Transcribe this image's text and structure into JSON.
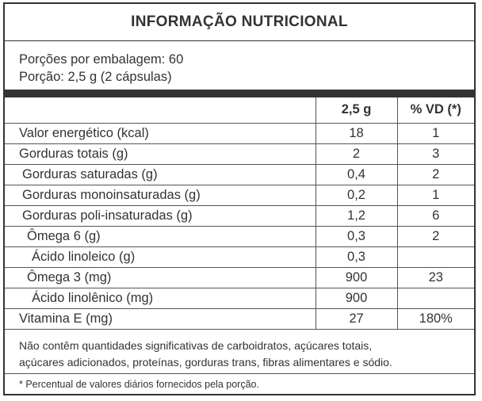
{
  "title": "INFORMAÇÃO NUTRICIONAL",
  "portions": {
    "per_package": "Porções por embalagem: 60",
    "serving": "Porção: 2,5 g (2 cápsulas)"
  },
  "table": {
    "headers": [
      "",
      "2,5 g",
      "% VD (*)"
    ],
    "rows": [
      {
        "name": "Valor energético (kcal)",
        "qty": "18",
        "vd": "1",
        "indent": 0
      },
      {
        "name": "Gorduras totais (g)",
        "qty": "2",
        "vd": "3",
        "indent": 0
      },
      {
        "name": "Gorduras saturadas (g)",
        "qty": "0,4",
        "vd": "2",
        "indent": 1
      },
      {
        "name": "Gorduras monoinsaturadas (g)",
        "qty": "0,2",
        "vd": "1",
        "indent": 1
      },
      {
        "name": "Gorduras poli-insaturadas (g)",
        "qty": "1,2",
        "vd": "6",
        "indent": 1
      },
      {
        "name": "Ômega 6 (g)",
        "qty": "0,3",
        "vd": "2",
        "indent": 2
      },
      {
        "name": "Ácido linoleico (g)",
        "qty": "0,3",
        "vd": "",
        "indent": 3
      },
      {
        "name": "Ômega 3 (mg)",
        "qty": "900",
        "vd": "23",
        "indent": 2
      },
      {
        "name": "Ácido linolênico (mg)",
        "qty": "900",
        "vd": "",
        "indent": 3
      },
      {
        "name": "Vitamina E (mg)",
        "qty": "27",
        "vd": "180%",
        "indent": 0
      }
    ]
  },
  "note": {
    "line1": "Não contêm quantidades significativas de carboidratos, açúcares totais,",
    "line2": "açúcares adicionados, proteínas, gorduras trans, fibras alimentares e sódio."
  },
  "footnote": "* Percentual de valores diários fornecidos pela porção."
}
